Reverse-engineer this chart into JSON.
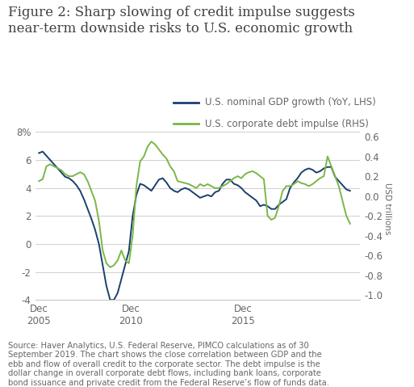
{
  "title": "Figure 2: Sharp slowing of credit impulse suggests\nnear-term downside risks to U.S. economic growth",
  "title_fontsize": 12,
  "title_color": "#404040",
  "legend_gdp": "U.S. nominal GDP growth (YoY, LHS)",
  "legend_debt": "U.S. corporate debt impulse (RHS)",
  "ylabel_right": "USD trillions",
  "source_text": "Source: Haver Analytics, U.S. Federal Reserve, PIMCO calculations as of 30\nSeptember 2019. The chart shows the close correlation between GDP and the\nebb and flow of overall credit to the corporate sector. The debt impulse is the\ndollar change in overall corporate debt flows, including bank loans, corporate\nbond issuance and private credit from the Federal Reserve’s flow of funds data.",
  "gdp_color": "#1a3f6f",
  "debt_color": "#7ab648",
  "background_color": "#ffffff",
  "ylim_left": [
    -4,
    9
  ],
  "ylim_right": [
    -1.05,
    0.7875
  ],
  "yticks_left": [
    -4,
    -2,
    0,
    2,
    4,
    6,
    8
  ],
  "yticks_right": [
    -1.0,
    -0.8,
    -0.6,
    -0.4,
    -0.2,
    0.0,
    0.2,
    0.4,
    0.6
  ],
  "gdp_dates": [
    2005.917,
    2006.083,
    2006.25,
    2006.417,
    2006.583,
    2006.75,
    2006.917,
    2007.083,
    2007.25,
    2007.417,
    2007.583,
    2007.75,
    2007.917,
    2008.083,
    2008.25,
    2008.417,
    2008.583,
    2008.75,
    2008.917,
    2009.083,
    2009.25,
    2009.417,
    2009.583,
    2009.75,
    2009.917,
    2010.083,
    2010.25,
    2010.417,
    2010.583,
    2010.75,
    2010.917,
    2011.083,
    2011.25,
    2011.417,
    2011.583,
    2011.75,
    2011.917,
    2012.083,
    2012.25,
    2012.417,
    2012.583,
    2012.75,
    2012.917,
    2013.083,
    2013.25,
    2013.417,
    2013.583,
    2013.75,
    2013.917,
    2014.083,
    2014.25,
    2014.417,
    2014.583,
    2014.75,
    2014.917,
    2015.083,
    2015.25,
    2015.417,
    2015.583,
    2015.75,
    2015.917,
    2016.083,
    2016.25,
    2016.417,
    2016.583,
    2016.75,
    2016.917,
    2017.083,
    2017.25,
    2017.417,
    2017.583,
    2017.75,
    2017.917,
    2018.083,
    2018.25,
    2018.417,
    2018.583,
    2018.75,
    2018.917,
    2019.083,
    2019.25,
    2019.583,
    2019.75
  ],
  "gdp_values": [
    6.5,
    6.6,
    6.3,
    6.0,
    5.7,
    5.4,
    5.1,
    4.8,
    4.7,
    4.5,
    4.2,
    3.8,
    3.2,
    2.5,
    1.8,
    1.0,
    0.0,
    -1.5,
    -3.0,
    -4.0,
    -4.0,
    -3.5,
    -2.5,
    -1.5,
    -0.5,
    2.0,
    3.5,
    4.3,
    4.2,
    4.0,
    3.8,
    4.2,
    4.6,
    4.7,
    4.4,
    4.0,
    3.8,
    3.7,
    3.9,
    4.0,
    3.9,
    3.7,
    3.5,
    3.3,
    3.4,
    3.5,
    3.4,
    3.7,
    3.8,
    4.3,
    4.6,
    4.6,
    4.3,
    4.2,
    4.0,
    3.7,
    3.5,
    3.3,
    3.1,
    2.7,
    2.8,
    2.7,
    2.5,
    2.5,
    2.8,
    3.0,
    3.2,
    4.0,
    4.4,
    4.7,
    5.1,
    5.3,
    5.4,
    5.3,
    5.1,
    5.2,
    5.4,
    5.5,
    5.5,
    4.8,
    4.5,
    3.9,
    3.8
  ],
  "debt_dates": [
    2005.917,
    2006.083,
    2006.25,
    2006.417,
    2006.583,
    2006.75,
    2006.917,
    2007.083,
    2007.25,
    2007.417,
    2007.583,
    2007.75,
    2007.917,
    2008.083,
    2008.25,
    2008.417,
    2008.583,
    2008.75,
    2008.917,
    2009.083,
    2009.25,
    2009.417,
    2009.583,
    2009.75,
    2009.917,
    2010.083,
    2010.25,
    2010.417,
    2010.583,
    2010.75,
    2010.917,
    2011.083,
    2011.25,
    2011.417,
    2011.583,
    2011.75,
    2011.917,
    2012.083,
    2012.25,
    2012.417,
    2012.583,
    2012.75,
    2012.917,
    2013.083,
    2013.25,
    2013.417,
    2013.583,
    2013.75,
    2013.917,
    2014.083,
    2014.25,
    2014.417,
    2014.583,
    2014.75,
    2014.917,
    2015.083,
    2015.25,
    2015.417,
    2015.583,
    2015.75,
    2015.917,
    2016.083,
    2016.25,
    2016.417,
    2016.583,
    2016.75,
    2016.917,
    2017.083,
    2017.25,
    2017.417,
    2017.583,
    2017.75,
    2017.917,
    2018.083,
    2018.25,
    2018.417,
    2018.583,
    2018.75,
    2018.917,
    2019.083,
    2019.25,
    2019.583,
    2019.75
  ],
  "debt_values": [
    0.15,
    0.17,
    0.3,
    0.32,
    0.3,
    0.28,
    0.26,
    0.22,
    0.2,
    0.2,
    0.22,
    0.24,
    0.22,
    0.15,
    0.05,
    -0.05,
    -0.25,
    -0.55,
    -0.68,
    -0.72,
    -0.7,
    -0.65,
    -0.55,
    -0.65,
    -0.68,
    -0.4,
    0.1,
    0.35,
    0.4,
    0.5,
    0.55,
    0.52,
    0.47,
    0.42,
    0.38,
    0.3,
    0.25,
    0.15,
    0.14,
    0.13,
    0.12,
    0.1,
    0.08,
    0.12,
    0.1,
    0.12,
    0.1,
    0.08,
    0.08,
    0.1,
    0.12,
    0.15,
    0.18,
    0.2,
    0.18,
    0.22,
    0.24,
    0.25,
    0.23,
    0.2,
    0.17,
    -0.2,
    -0.24,
    -0.22,
    -0.1,
    0.05,
    0.1,
    0.1,
    0.12,
    0.15,
    0.13,
    0.12,
    0.1,
    0.12,
    0.15,
    0.18,
    0.2,
    0.4,
    0.3,
    0.2,
    0.1,
    -0.2,
    -0.28
  ],
  "xtick_positions": [
    2005.917,
    2010.0,
    2015.0
  ],
  "xtick_labels": [
    "Dec\n2005",
    "Dec\n2010",
    "Dec\n2015"
  ],
  "grid_color": "#c8c8c8",
  "spine_color": "#c8c8c8",
  "tick_color": "#666666",
  "source_fontsize": 7.2,
  "legend_fontsize": 8.5,
  "tick_fontsize": 8.5
}
